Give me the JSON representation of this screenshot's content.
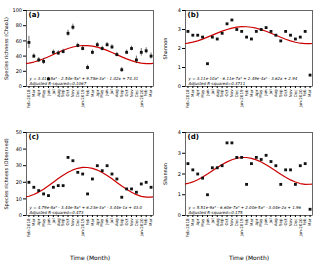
{
  "chart_data": [
    {
      "type": "scatter",
      "title": "(a)",
      "ylabel": "Species richness (Chao1)",
      "annotations": [
        "y = 3.41e-8x⁵ - 2.54e-5x⁴ + 9.78e-3x³ - 1.02x + 74.31",
        "Adjusted R-squared=0.1067"
      ],
      "x": [
        0,
        1,
        2,
        3,
        4,
        5,
        6,
        7,
        8,
        9,
        10,
        11,
        12,
        13,
        14,
        15,
        16,
        17,
        18,
        19,
        20,
        21,
        22,
        23,
        24,
        25
      ],
      "xlim": [
        -0.5,
        25.5
      ],
      "xticks": [
        {
          "value": 0,
          "label": "Feb-2018"
        },
        {
          "value": 1,
          "label": "Mar"
        },
        {
          "value": 2,
          "label": "Apr"
        },
        {
          "value": 3,
          "label": "May"
        },
        {
          "value": 4,
          "label": "Jun"
        },
        {
          "value": 5,
          "label": "Jul"
        },
        {
          "value": 6,
          "label": "Aug"
        },
        {
          "value": 7,
          "label": "Sep"
        },
        {
          "value": 8,
          "label": "Oct"
        },
        {
          "value": 9,
          "label": "Nov"
        },
        {
          "value": 10,
          "label": "Dec"
        },
        {
          "value": 11,
          "label": "Jan-2019"
        },
        {
          "value": 12,
          "label": "Feb"
        },
        {
          "value": 13,
          "label": "Mar"
        },
        {
          "value": 14,
          "label": "Apr"
        },
        {
          "value": 15,
          "label": "May"
        },
        {
          "value": 16,
          "label": "Jun"
        },
        {
          "value": 17,
          "label": "Jul"
        },
        {
          "value": 18,
          "label": "Aug"
        },
        {
          "value": 19,
          "label": "Sep"
        },
        {
          "value": 20,
          "label": "Oct"
        },
        {
          "value": 21,
          "label": "Nov"
        },
        {
          "value": 22,
          "label": "Dec"
        },
        {
          "value": 23,
          "label": "Jan-2020"
        },
        {
          "value": 24,
          "label": "Feb"
        },
        {
          "value": 25,
          "label": "Mar"
        }
      ],
      "ylim": [
        0,
        100
      ],
      "yticks": [
        0,
        20,
        40,
        60,
        80,
        100
      ],
      "series": [
        {
          "type": "scatter",
          "marker": "square",
          "color": "#111111",
          "values": [
            58,
            40,
            35,
            33,
            10,
            45,
            44,
            46,
            70,
            78,
            54,
            50,
            25,
            45,
            55,
            50,
            55,
            52,
            42,
            22,
            45,
            50,
            35,
            45,
            47,
            40
          ],
          "errors": [
            8,
            3,
            3,
            4,
            2,
            3,
            3,
            3,
            4,
            4,
            3,
            3,
            3,
            3,
            3,
            3,
            3,
            3,
            3,
            3,
            3,
            3,
            5,
            5,
            4,
            4
          ]
        },
        {
          "type": "line",
          "color": "#cc0000",
          "x": [
            -0.5,
            0,
            1,
            2,
            3,
            4,
            5,
            6,
            7,
            8,
            9,
            10,
            11,
            12,
            13,
            14,
            15,
            16,
            17,
            18,
            19,
            20,
            21,
            22,
            23,
            24,
            25,
            25.5
          ],
          "values": [
            30.37,
            30.82,
            32.18,
            34.12,
            36.51,
            39.23,
            42.1,
            44.97,
            47.66,
            50.03,
            51.93,
            53.26,
            53.92,
            53.9,
            53.18,
            51.82,
            49.88,
            47.49,
            44.77,
            41.9,
            39.03,
            36.34,
            33.97,
            32.07,
            30.74,
            30.08,
            30.1,
            30.37
          ]
        }
      ]
    },
    {
      "type": "scatter",
      "title": "(b)",
      "ylabel": "Shannon",
      "annotations": [
        "y = 3.11e-10x⁵ - 6.11e-7x⁴ + 2.49e-4x³ - 3.62x + 2.94",
        "Adjusted R-squared=0.3711"
      ],
      "x": [
        0,
        1,
        2,
        3,
        4,
        5,
        6,
        7,
        8,
        9,
        10,
        11,
        12,
        13,
        14,
        15,
        16,
        17,
        18,
        19,
        20,
        21,
        22,
        23,
        24,
        25
      ],
      "xlim": [
        -0.5,
        25.5
      ],
      "xticks": [
        {
          "value": 0,
          "label": "Feb-2018"
        },
        {
          "value": 1,
          "label": "Mar"
        },
        {
          "value": 2,
          "label": "Apr"
        },
        {
          "value": 3,
          "label": "May"
        },
        {
          "value": 4,
          "label": "Jun"
        },
        {
          "value": 5,
          "label": "Jul"
        },
        {
          "value": 6,
          "label": "Aug"
        },
        {
          "value": 7,
          "label": "Sep"
        },
        {
          "value": 8,
          "label": "Oct"
        },
        {
          "value": 9,
          "label": "Nov"
        },
        {
          "value": 10,
          "label": "Dec"
        },
        {
          "value": 11,
          "label": "Jan-2019"
        },
        {
          "value": 12,
          "label": "Feb"
        },
        {
          "value": 13,
          "label": "Mar"
        },
        {
          "value": 14,
          "label": "Apr"
        },
        {
          "value": 15,
          "label": "May"
        },
        {
          "value": 16,
          "label": "Jun"
        },
        {
          "value": 17,
          "label": "Jul"
        },
        {
          "value": 18,
          "label": "Aug"
        },
        {
          "value": 19,
          "label": "Sep"
        },
        {
          "value": 20,
          "label": "Oct"
        },
        {
          "value": 21,
          "label": "Nov"
        },
        {
          "value": 22,
          "label": "Dec"
        },
        {
          "value": 23,
          "label": "Jan-2020"
        },
        {
          "value": 24,
          "label": "Feb"
        },
        {
          "value": 25,
          "label": "Mar"
        }
      ],
      "ylim": [
        0,
        4
      ],
      "yticks": [
        0,
        1,
        2,
        3,
        4
      ],
      "series": [
        {
          "type": "scatter",
          "marker": "square",
          "color": "#111111",
          "values": [
            2.9,
            2.7,
            2.7,
            2.6,
            1.2,
            2.6,
            2.5,
            2.8,
            3.3,
            3.5,
            3.0,
            2.9,
            2.6,
            2.5,
            2.9,
            3.0,
            3.1,
            2.9,
            2.7,
            2.4,
            2.9,
            2.7,
            2.5,
            2.6,
            2.9,
            0.6
          ]
        },
        {
          "type": "line",
          "color": "#cc0000",
          "x": [
            -0.5,
            0,
            1,
            2,
            3,
            4,
            5,
            6,
            7,
            8,
            9,
            10,
            11,
            12,
            13,
            14,
            15,
            16,
            17,
            18,
            19,
            20,
            21,
            22,
            23,
            24,
            25,
            25.5
          ],
          "values": [
            2.264,
            2.281,
            2.332,
            2.404,
            2.494,
            2.596,
            2.704,
            2.811,
            2.912,
            3.001,
            3.072,
            3.122,
            3.147,
            3.146,
            3.119,
            3.068,
            2.996,
            2.906,
            2.804,
            2.696,
            2.589,
            2.488,
            2.399,
            2.328,
            2.278,
            2.253,
            2.254,
            2.264
          ]
        }
      ]
    },
    {
      "type": "scatter",
      "title": "(c)",
      "ylabel": "Species richness (Observed)",
      "xlabel": "Time (Month)",
      "annotations": [
        "y = 4.79e-8x⁵ - 3.44e-5x⁴ + 6.23e-3x³ - 3.44e-1x + 43.0",
        "Adjusted R-squared=0.473"
      ],
      "x": [
        0,
        1,
        2,
        3,
        4,
        5,
        6,
        7,
        8,
        9,
        10,
        11,
        12,
        13,
        14,
        15,
        16,
        17,
        18,
        19,
        20,
        21,
        22,
        23,
        24,
        25
      ],
      "xlim": [
        -0.5,
        25.5
      ],
      "xticks": [
        {
          "value": 0,
          "label": "Feb-2018"
        },
        {
          "value": 1,
          "label": "Mar"
        },
        {
          "value": 2,
          "label": "Apr"
        },
        {
          "value": 3,
          "label": "May"
        },
        {
          "value": 4,
          "label": "Jun"
        },
        {
          "value": 5,
          "label": "Jul"
        },
        {
          "value": 6,
          "label": "Aug"
        },
        {
          "value": 7,
          "label": "Sep"
        },
        {
          "value": 8,
          "label": "Oct"
        },
        {
          "value": 9,
          "label": "Nov"
        },
        {
          "value": 10,
          "label": "Dec"
        },
        {
          "value": 11,
          "label": "Jan-2019"
        },
        {
          "value": 12,
          "label": "Feb"
        },
        {
          "value": 13,
          "label": "Mar"
        },
        {
          "value": 14,
          "label": "Apr"
        },
        {
          "value": 15,
          "label": "May"
        },
        {
          "value": 16,
          "label": "Jun"
        },
        {
          "value": 17,
          "label": "Jul"
        },
        {
          "value": 18,
          "label": "Aug"
        },
        {
          "value": 19,
          "label": "Sep"
        },
        {
          "value": 20,
          "label": "Oct"
        },
        {
          "value": 21,
          "label": "Nov"
        },
        {
          "value": 22,
          "label": "Dec"
        },
        {
          "value": 23,
          "label": "Jan-2020"
        },
        {
          "value": 24,
          "label": "Feb"
        },
        {
          "value": 25,
          "label": "Mar"
        }
      ],
      "ylim": [
        0,
        50
      ],
      "yticks": [
        0,
        10,
        20,
        30,
        40,
        50
      ],
      "series": [
        {
          "type": "scatter",
          "marker": "square",
          "color": "#111111",
          "values": [
            20,
            17,
            15,
            13,
            12,
            17,
            18,
            18,
            35,
            33,
            26,
            25,
            13,
            22,
            30,
            27,
            30,
            25,
            22,
            11,
            16,
            16,
            14,
            19,
            20,
            17
          ]
        },
        {
          "type": "line",
          "color": "#cc0000",
          "x": [
            -0.5,
            0,
            1,
            2,
            3,
            4,
            5,
            6,
            7,
            8,
            9,
            10,
            11,
            12,
            13,
            14,
            15,
            16,
            17,
            18,
            19,
            20,
            21,
            22,
            23,
            24,
            25,
            25.5
          ],
          "values": [
            11.28,
            11.61,
            12.64,
            14.09,
            15.88,
            17.92,
            20.07,
            22.23,
            24.25,
            26.02,
            27.45,
            28.44,
            28.94,
            28.93,
            28.39,
            27.36,
            25.91,
            24.12,
            22.08,
            19.93,
            17.77,
            15.75,
            13.98,
            12.55,
            11.56,
            11.06,
            11.08,
            11.28
          ]
        }
      ]
    },
    {
      "type": "scatter",
      "title": "(d)",
      "ylabel": "Shannon",
      "xlabel": "Time (Month)",
      "annotations": [
        "y = 5.51e-9x⁵ - 6.60e-7x⁴ + 2.00e-5x³ - 3.04e-2x + 1.96",
        "Adjusted R-squared=0.175"
      ],
      "x": [
        0,
        1,
        2,
        3,
        4,
        5,
        6,
        7,
        8,
        9,
        10,
        11,
        12,
        13,
        14,
        15,
        16,
        17,
        18,
        19,
        20,
        21,
        22,
        23,
        24,
        25
      ],
      "xlim": [
        -0.5,
        25.5
      ],
      "xticks": [
        {
          "value": 0,
          "label": "Feb-2018"
        },
        {
          "value": 1,
          "label": "Mar"
        },
        {
          "value": 2,
          "label": "Apr"
        },
        {
          "value": 3,
          "label": "May"
        },
        {
          "value": 4,
          "label": "Jun"
        },
        {
          "value": 5,
          "label": "Jul"
        },
        {
          "value": 6,
          "label": "Aug"
        },
        {
          "value": 7,
          "label": "Sep"
        },
        {
          "value": 8,
          "label": "Oct"
        },
        {
          "value": 9,
          "label": "Nov"
        },
        {
          "value": 10,
          "label": "Dec"
        },
        {
          "value": 11,
          "label": "Jan-2019"
        },
        {
          "value": 12,
          "label": "Feb"
        },
        {
          "value": 13,
          "label": "Mar"
        },
        {
          "value": 14,
          "label": "Apr"
        },
        {
          "value": 15,
          "label": "May"
        },
        {
          "value": 16,
          "label": "Jun"
        },
        {
          "value": 17,
          "label": "Jul"
        },
        {
          "value": 18,
          "label": "Aug"
        },
        {
          "value": 19,
          "label": "Sep"
        },
        {
          "value": 20,
          "label": "Oct"
        },
        {
          "value": 21,
          "label": "Nov"
        },
        {
          "value": 22,
          "label": "Dec"
        },
        {
          "value": 23,
          "label": "Jan-2020"
        },
        {
          "value": 24,
          "label": "Feb"
        },
        {
          "value": 25,
          "label": "Mar"
        }
      ],
      "ylim": [
        0,
        4
      ],
      "yticks": [
        0,
        1,
        2,
        3,
        4
      ],
      "series": [
        {
          "type": "scatter",
          "marker": "square",
          "color": "#111111",
          "values": [
            2.5,
            2.2,
            2.0,
            1.8,
            1.0,
            2.3,
            2.3,
            2.4,
            3.5,
            3.5,
            2.8,
            2.8,
            1.5,
            2.5,
            2.8,
            2.7,
            2.9,
            2.6,
            2.4,
            1.5,
            2.2,
            2.2,
            1.5,
            2.4,
            2.5,
            0.3
          ]
        },
        {
          "type": "line",
          "color": "#cc0000",
          "x": [
            -0.5,
            0,
            1,
            2,
            3,
            4,
            5,
            6,
            7,
            8,
            9,
            10,
            11,
            12,
            13,
            14,
            15,
            16,
            17,
            18,
            19,
            20,
            21,
            22,
            23,
            24,
            25,
            25.5
          ],
          "values": [
            1.52,
            1.544,
            1.618,
            1.723,
            1.853,
            2.0,
            2.155,
            2.311,
            2.457,
            2.585,
            2.688,
            2.76,
            2.796,
            2.795,
            2.756,
            2.682,
            2.577,
            2.447,
            2.3,
            2.145,
            1.989,
            1.843,
            1.715,
            1.612,
            1.54,
            1.504,
            1.505,
            1.52
          ]
        }
      ]
    }
  ]
}
